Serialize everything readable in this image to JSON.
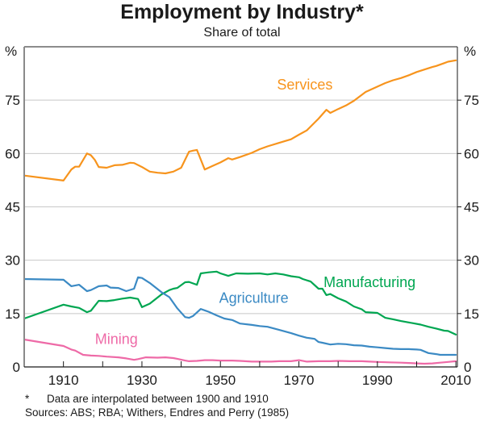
{
  "chart_data": {
    "type": "line",
    "title": "Employment by Industry*",
    "subtitle": "Share of total",
    "ylabel_left": "%",
    "ylabel_right": "%",
    "xlabel": "",
    "xlim": [
      1900,
      2011
    ],
    "ylim": [
      0,
      90
    ],
    "yticks": [
      0,
      15,
      30,
      45,
      60,
      75
    ],
    "xticks_minor": [
      1910,
      1920,
      1930,
      1940,
      1950,
      1960,
      1970,
      1980,
      1990,
      2000,
      2010
    ],
    "xtick_labels": [
      "1910",
      "1930",
      "1950",
      "1970",
      "1990",
      "2010"
    ],
    "grid": true,
    "legend": "inline-labels",
    "series": [
      {
        "name": "Services",
        "color": "#f7941d",
        "points": [
          [
            1900,
            53.8
          ],
          [
            1910,
            52.4
          ],
          [
            1912,
            55.5
          ],
          [
            1913,
            56.3
          ],
          [
            1914,
            56.3
          ],
          [
            1916,
            60.0
          ],
          [
            1917,
            59.5
          ],
          [
            1918,
            58.2
          ],
          [
            1919,
            56.2
          ],
          [
            1921,
            56.0
          ],
          [
            1923,
            56.7
          ],
          [
            1925,
            56.8
          ],
          [
            1927,
            57.4
          ],
          [
            1928,
            57.3
          ],
          [
            1930,
            56.2
          ],
          [
            1932,
            54.9
          ],
          [
            1934,
            54.6
          ],
          [
            1936,
            54.4
          ],
          [
            1938,
            54.9
          ],
          [
            1940,
            56.0
          ],
          [
            1942,
            60.5
          ],
          [
            1943,
            60.8
          ],
          [
            1944,
            61.0
          ],
          [
            1946,
            55.5
          ],
          [
            1948,
            56.5
          ],
          [
            1950,
            57.5
          ],
          [
            1952,
            58.7
          ],
          [
            1953,
            58.3
          ],
          [
            1955,
            59.0
          ],
          [
            1958,
            60.2
          ],
          [
            1960,
            61.2
          ],
          [
            1962,
            62.0
          ],
          [
            1965,
            63.0
          ],
          [
            1968,
            64.0
          ],
          [
            1970,
            65.3
          ],
          [
            1972,
            66.5
          ],
          [
            1974,
            68.7
          ],
          [
            1975,
            69.8
          ],
          [
            1977,
            72.3
          ],
          [
            1978,
            71.4
          ],
          [
            1980,
            72.5
          ],
          [
            1982,
            73.5
          ],
          [
            1984,
            74.8
          ],
          [
            1987,
            77.3
          ],
          [
            1990,
            78.8
          ],
          [
            1992,
            79.8
          ],
          [
            1994,
            80.6
          ],
          [
            1996,
            81.2
          ],
          [
            1998,
            82.0
          ],
          [
            2000,
            82.9
          ],
          [
            2002,
            83.6
          ],
          [
            2004,
            84.3
          ],
          [
            2005,
            84.6
          ],
          [
            2007,
            85.4
          ],
          [
            2008,
            85.8
          ],
          [
            2010,
            86.2
          ]
        ]
      },
      {
        "name": "Manufacturing",
        "color": "#00a651",
        "points": [
          [
            1900,
            13.6
          ],
          [
            1910,
            17.5
          ],
          [
            1912,
            17.0
          ],
          [
            1914,
            16.6
          ],
          [
            1916,
            15.4
          ],
          [
            1917,
            15.8
          ],
          [
            1919,
            18.6
          ],
          [
            1921,
            18.5
          ],
          [
            1923,
            18.8
          ],
          [
            1925,
            19.2
          ],
          [
            1927,
            19.5
          ],
          [
            1929,
            19.1
          ],
          [
            1930,
            16.8
          ],
          [
            1932,
            17.8
          ],
          [
            1935,
            20.4
          ],
          [
            1937,
            21.6
          ],
          [
            1938,
            22.0
          ],
          [
            1939,
            22.2
          ],
          [
            1941,
            23.8
          ],
          [
            1942,
            23.9
          ],
          [
            1944,
            23.1
          ],
          [
            1945,
            26.3
          ],
          [
            1947,
            26.6
          ],
          [
            1949,
            26.8
          ],
          [
            1950,
            26.3
          ],
          [
            1952,
            25.6
          ],
          [
            1954,
            26.3
          ],
          [
            1957,
            26.2
          ],
          [
            1960,
            26.3
          ],
          [
            1962,
            26.0
          ],
          [
            1964,
            26.3
          ],
          [
            1966,
            26.0
          ],
          [
            1968,
            25.5
          ],
          [
            1970,
            25.2
          ],
          [
            1971,
            24.7
          ],
          [
            1973,
            24.0
          ],
          [
            1975,
            22.0
          ],
          [
            1976,
            22.0
          ],
          [
            1977,
            20.2
          ],
          [
            1978,
            20.5
          ],
          [
            1980,
            19.3
          ],
          [
            1982,
            18.4
          ],
          [
            1984,
            17.0
          ],
          [
            1986,
            16.2
          ],
          [
            1987,
            15.4
          ],
          [
            1990,
            15.2
          ],
          [
            1992,
            13.8
          ],
          [
            1994,
            13.4
          ],
          [
            1996,
            12.9
          ],
          [
            1999,
            12.3
          ],
          [
            2001,
            11.9
          ],
          [
            2003,
            11.3
          ],
          [
            2005,
            10.8
          ],
          [
            2007,
            10.2
          ],
          [
            2008,
            10.1
          ],
          [
            2010,
            9.1
          ]
        ]
      },
      {
        "name": "Agriculture",
        "color": "#3b8ac4",
        "points": [
          [
            1900,
            24.7
          ],
          [
            1910,
            24.5
          ],
          [
            1912,
            22.7
          ],
          [
            1914,
            23.1
          ],
          [
            1916,
            21.3
          ],
          [
            1917,
            21.6
          ],
          [
            1919,
            22.7
          ],
          [
            1921,
            22.9
          ],
          [
            1922,
            22.3
          ],
          [
            1924,
            22.2
          ],
          [
            1926,
            21.3
          ],
          [
            1928,
            22.0
          ],
          [
            1929,
            25.2
          ],
          [
            1930,
            25.0
          ],
          [
            1932,
            23.6
          ],
          [
            1935,
            21.0
          ],
          [
            1937,
            19.6
          ],
          [
            1939,
            16.5
          ],
          [
            1941,
            14.0
          ],
          [
            1942,
            13.8
          ],
          [
            1943,
            14.3
          ],
          [
            1945,
            16.3
          ],
          [
            1947,
            15.5
          ],
          [
            1949,
            14.5
          ],
          [
            1951,
            13.6
          ],
          [
            1953,
            13.2
          ],
          [
            1955,
            12.2
          ],
          [
            1958,
            11.8
          ],
          [
            1960,
            11.5
          ],
          [
            1962,
            11.3
          ],
          [
            1965,
            10.4
          ],
          [
            1968,
            9.5
          ],
          [
            1970,
            8.8
          ],
          [
            1972,
            8.2
          ],
          [
            1974,
            7.9
          ],
          [
            1975,
            7.0
          ],
          [
            1976,
            6.8
          ],
          [
            1978,
            6.3
          ],
          [
            1980,
            6.5
          ],
          [
            1982,
            6.4
          ],
          [
            1984,
            6.1
          ],
          [
            1986,
            6.0
          ],
          [
            1988,
            5.7
          ],
          [
            1990,
            5.5
          ],
          [
            1992,
            5.3
          ],
          [
            1994,
            5.1
          ],
          [
            1996,
            5.0
          ],
          [
            1998,
            5.0
          ],
          [
            2000,
            4.9
          ],
          [
            2001,
            4.8
          ],
          [
            2003,
            3.9
          ],
          [
            2005,
            3.6
          ],
          [
            2006,
            3.4
          ],
          [
            2008,
            3.4
          ],
          [
            2010,
            3.4
          ]
        ]
      },
      {
        "name": "Mining",
        "color": "#ee6aa7",
        "points": [
          [
            1900,
            7.7
          ],
          [
            1905,
            6.8
          ],
          [
            1910,
            5.9
          ],
          [
            1912,
            4.9
          ],
          [
            1913,
            4.6
          ],
          [
            1915,
            3.4
          ],
          [
            1917,
            3.2
          ],
          [
            1919,
            3.1
          ],
          [
            1921,
            2.9
          ],
          [
            1924,
            2.7
          ],
          [
            1926,
            2.4
          ],
          [
            1928,
            2.0
          ],
          [
            1929,
            2.2
          ],
          [
            1931,
            2.7
          ],
          [
            1934,
            2.6
          ],
          [
            1936,
            2.7
          ],
          [
            1938,
            2.5
          ],
          [
            1939,
            2.3
          ],
          [
            1941,
            1.8
          ],
          [
            1942,
            1.6
          ],
          [
            1944,
            1.7
          ],
          [
            1946,
            1.9
          ],
          [
            1948,
            1.9
          ],
          [
            1950,
            1.8
          ],
          [
            1953,
            1.8
          ],
          [
            1955,
            1.7
          ],
          [
            1958,
            1.5
          ],
          [
            1960,
            1.5
          ],
          [
            1963,
            1.5
          ],
          [
            1965,
            1.6
          ],
          [
            1968,
            1.6
          ],
          [
            1970,
            1.9
          ],
          [
            1972,
            1.5
          ],
          [
            1975,
            1.6
          ],
          [
            1978,
            1.6
          ],
          [
            1980,
            1.7
          ],
          [
            1983,
            1.6
          ],
          [
            1986,
            1.6
          ],
          [
            1988,
            1.5
          ],
          [
            1990,
            1.4
          ],
          [
            1993,
            1.3
          ],
          [
            1996,
            1.2
          ],
          [
            1998,
            1.1
          ],
          [
            2000,
            1.0
          ],
          [
            2002,
            0.9
          ],
          [
            2004,
            1.0
          ],
          [
            2006,
            1.2
          ],
          [
            2008,
            1.4
          ],
          [
            2010,
            1.6
          ]
        ]
      }
    ],
    "series_labels": [
      {
        "name": "Services",
        "text": "Services",
        "color": "#f7941d",
        "at": [
          1971.5,
          78
        ]
      },
      {
        "name": "Manufacturing",
        "text": "Manufacturing",
        "color": "#00a651",
        "at": [
          1988,
          22.5
        ]
      },
      {
        "name": "Agriculture",
        "text": "Agriculture",
        "color": "#3b8ac4",
        "at": [
          1958.5,
          18.0
        ]
      },
      {
        "name": "Mining",
        "text": "Mining",
        "color": "#ee6aa7",
        "at": [
          1923.5,
          6.5
        ]
      }
    ]
  },
  "footnotes": {
    "star": "*",
    "note": "Data are interpolated between 1900 and 1910",
    "sources": "Sources: ABS; RBA; Withers, Endres and Perry (1985)"
  }
}
